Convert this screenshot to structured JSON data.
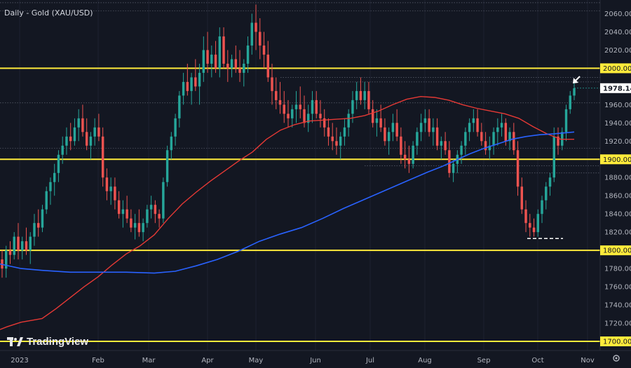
{
  "chart_title": "Daily - Gold (XAU/USD)",
  "brand": "TradingView",
  "chart_data": {
    "type": "candlestick",
    "title": "Daily - Gold (XAU/USD)",
    "ylim": [
      1690,
      2075
    ],
    "y_ticks": [
      1720,
      1740,
      1760,
      1780,
      1820,
      1840,
      1860,
      1880,
      1920,
      1940,
      1960,
      2020,
      2040,
      2060
    ],
    "y_tick_labels": [
      "1720.000",
      "1740.000",
      "1760.000",
      "1780.000",
      "1820.000",
      "1840.000",
      "1860.000",
      "1880.000",
      "1920.000",
      "1940.000",
      "1960.000",
      "2020.000",
      "2040.000",
      "2060.000"
    ],
    "x_ticks": [
      "2023",
      "Feb",
      "Mar",
      "Apr",
      "May",
      "Jun",
      "Jul",
      "Aug",
      "Sep",
      "Oct",
      "Nov"
    ],
    "levels": [
      {
        "value": 2000,
        "label": "2000.000"
      },
      {
        "value": 1900,
        "label": "1900.000"
      },
      {
        "value": 1800,
        "label": "1800.000"
      },
      {
        "value": 1700,
        "label": "1700.000"
      }
    ],
    "current_price": {
      "value": 1978.145,
      "label": "1978.145"
    },
    "colors": {
      "up": "#26a69a",
      "down": "#ef5350",
      "ma_red": "#e53935",
      "ma_blue": "#2962ff",
      "level": "#ffeb3b"
    },
    "ohlc": [
      [
        1790,
        1800,
        1770,
        1780
      ],
      [
        1780,
        1805,
        1770,
        1800
      ],
      [
        1800,
        1810,
        1785,
        1795
      ],
      [
        1795,
        1820,
        1790,
        1815
      ],
      [
        1815,
        1830,
        1790,
        1800
      ],
      [
        1800,
        1815,
        1790,
        1810
      ],
      [
        1810,
        1825,
        1795,
        1800
      ],
      [
        1800,
        1820,
        1785,
        1815
      ],
      [
        1815,
        1840,
        1805,
        1830
      ],
      [
        1830,
        1845,
        1815,
        1825
      ],
      [
        1825,
        1850,
        1820,
        1845
      ],
      [
        1845,
        1870,
        1840,
        1865
      ],
      [
        1865,
        1880,
        1850,
        1875
      ],
      [
        1875,
        1895,
        1860,
        1885
      ],
      [
        1885,
        1910,
        1875,
        1905
      ],
      [
        1905,
        1925,
        1895,
        1915
      ],
      [
        1915,
        1935,
        1905,
        1925
      ],
      [
        1925,
        1940,
        1910,
        1920
      ],
      [
        1920,
        1945,
        1915,
        1935
      ],
      [
        1935,
        1955,
        1920,
        1945
      ],
      [
        1945,
        1960,
        1925,
        1930
      ],
      [
        1930,
        1945,
        1910,
        1915
      ],
      [
        1915,
        1930,
        1900,
        1925
      ],
      [
        1925,
        1945,
        1915,
        1935
      ],
      [
        1935,
        1950,
        1920,
        1925
      ],
      [
        1925,
        1935,
        1870,
        1880
      ],
      [
        1880,
        1890,
        1855,
        1865
      ],
      [
        1865,
        1880,
        1850,
        1870
      ],
      [
        1870,
        1880,
        1845,
        1855
      ],
      [
        1855,
        1865,
        1835,
        1840
      ],
      [
        1840,
        1855,
        1825,
        1845
      ],
      [
        1845,
        1860,
        1830,
        1835
      ],
      [
        1835,
        1845,
        1820,
        1825
      ],
      [
        1825,
        1840,
        1812,
        1830
      ],
      [
        1830,
        1845,
        1815,
        1820
      ],
      [
        1820,
        1835,
        1810,
        1830
      ],
      [
        1830,
        1850,
        1825,
        1845
      ],
      [
        1845,
        1860,
        1835,
        1850
      ],
      [
        1850,
        1855,
        1830,
        1840
      ],
      [
        1840,
        1845,
        1825,
        1835
      ],
      [
        1835,
        1880,
        1830,
        1875
      ],
      [
        1875,
        1915,
        1870,
        1910
      ],
      [
        1910,
        1930,
        1900,
        1925
      ],
      [
        1925,
        1950,
        1915,
        1945
      ],
      [
        1945,
        1975,
        1935,
        1970
      ],
      [
        1970,
        1995,
        1960,
        1985
      ],
      [
        1985,
        2005,
        1970,
        1975
      ],
      [
        1975,
        1995,
        1960,
        1990
      ],
      [
        1990,
        2010,
        1975,
        1980
      ],
      [
        1980,
        2005,
        1960,
        1995
      ],
      [
        1995,
        2035,
        1985,
        2020
      ],
      [
        2020,
        2040,
        1995,
        2005
      ],
      [
        2005,
        2025,
        1990,
        2015
      ],
      [
        2015,
        2030,
        1995,
        2000
      ],
      [
        2000,
        2045,
        1990,
        2035
      ],
      [
        2035,
        2045,
        2000,
        2005
      ],
      [
        2005,
        2020,
        1985,
        2000
      ],
      [
        2000,
        2015,
        1990,
        2010
      ],
      [
        2010,
        2025,
        1995,
        2000
      ],
      [
        2000,
        2020,
        1985,
        1995
      ],
      [
        1995,
        2010,
        1980,
        2005
      ],
      [
        2005,
        2035,
        1995,
        2025
      ],
      [
        2025,
        2060,
        2015,
        2050
      ],
      [
        2050,
        2070,
        2020,
        2040
      ],
      [
        2040,
        2055,
        2010,
        2025
      ],
      [
        2025,
        2040,
        2000,
        2015
      ],
      [
        2015,
        2030,
        1985,
        1990
      ],
      [
        1990,
        2005,
        1960,
        1975
      ],
      [
        1975,
        1990,
        1955,
        1965
      ],
      [
        1965,
        1985,
        1950,
        1960
      ],
      [
        1960,
        1975,
        1940,
        1950
      ],
      [
        1950,
        1965,
        1935,
        1945
      ],
      [
        1945,
        1960,
        1935,
        1955
      ],
      [
        1955,
        1975,
        1940,
        1960
      ],
      [
        1960,
        1980,
        1945,
        1955
      ],
      [
        1955,
        1970,
        1935,
        1940
      ],
      [
        1940,
        1960,
        1930,
        1950
      ],
      [
        1950,
        1975,
        1940,
        1965
      ],
      [
        1965,
        1975,
        1945,
        1950
      ],
      [
        1950,
        1965,
        1935,
        1945
      ],
      [
        1945,
        1955,
        1925,
        1935
      ],
      [
        1935,
        1945,
        1915,
        1925
      ],
      [
        1925,
        1940,
        1910,
        1920
      ],
      [
        1920,
        1935,
        1905,
        1915
      ],
      [
        1915,
        1930,
        1900,
        1925
      ],
      [
        1925,
        1945,
        1915,
        1935
      ],
      [
        1935,
        1955,
        1925,
        1950
      ],
      [
        1950,
        1975,
        1940,
        1965
      ],
      [
        1965,
        1985,
        1955,
        1975
      ],
      [
        1975,
        1990,
        1960,
        1965
      ],
      [
        1965,
        1985,
        1955,
        1975
      ],
      [
        1975,
        1985,
        1950,
        1955
      ],
      [
        1955,
        1965,
        1935,
        1940
      ],
      [
        1940,
        1955,
        1925,
        1945
      ],
      [
        1945,
        1960,
        1930,
        1935
      ],
      [
        1935,
        1945,
        1915,
        1920
      ],
      [
        1920,
        1935,
        1905,
        1930
      ],
      [
        1930,
        1950,
        1920,
        1940
      ],
      [
        1940,
        1955,
        1920,
        1925
      ],
      [
        1925,
        1935,
        1895,
        1905
      ],
      [
        1905,
        1920,
        1890,
        1900
      ],
      [
        1900,
        1915,
        1885,
        1895
      ],
      [
        1895,
        1920,
        1890,
        1915
      ],
      [
        1915,
        1935,
        1905,
        1930
      ],
      [
        1930,
        1950,
        1920,
        1940
      ],
      [
        1940,
        1955,
        1930,
        1945
      ],
      [
        1945,
        1955,
        1925,
        1930
      ],
      [
        1930,
        1945,
        1915,
        1935
      ],
      [
        1935,
        1945,
        1910,
        1915
      ],
      [
        1915,
        1925,
        1900,
        1920
      ],
      [
        1920,
        1930,
        1905,
        1910
      ],
      [
        1910,
        1920,
        1880,
        1885
      ],
      [
        1885,
        1900,
        1875,
        1895
      ],
      [
        1895,
        1910,
        1885,
        1905
      ],
      [
        1905,
        1920,
        1895,
        1915
      ],
      [
        1915,
        1935,
        1905,
        1930
      ],
      [
        1930,
        1945,
        1920,
        1940
      ],
      [
        1940,
        1955,
        1930,
        1945
      ],
      [
        1945,
        1955,
        1925,
        1930
      ],
      [
        1930,
        1940,
        1915,
        1920
      ],
      [
        1920,
        1930,
        1905,
        1910
      ],
      [
        1910,
        1925,
        1900,
        1915
      ],
      [
        1915,
        1935,
        1905,
        1930
      ],
      [
        1930,
        1945,
        1915,
        1935
      ],
      [
        1935,
        1950,
        1925,
        1940
      ],
      [
        1940,
        1945,
        1915,
        1920
      ],
      [
        1920,
        1935,
        1910,
        1930
      ],
      [
        1930,
        1940,
        1905,
        1910
      ],
      [
        1910,
        1920,
        1860,
        1870
      ],
      [
        1870,
        1880,
        1840,
        1845
      ],
      [
        1845,
        1855,
        1820,
        1830
      ],
      [
        1830,
        1840,
        1815,
        1825
      ],
      [
        1825,
        1835,
        1815,
        1820
      ],
      [
        1820,
        1845,
        1815,
        1840
      ],
      [
        1840,
        1860,
        1830,
        1855
      ],
      [
        1855,
        1875,
        1845,
        1870
      ],
      [
        1870,
        1885,
        1860,
        1880
      ],
      [
        1880,
        1935,
        1875,
        1925
      ],
      [
        1925,
        1935,
        1905,
        1915
      ],
      [
        1915,
        1935,
        1910,
        1930
      ],
      [
        1930,
        1960,
        1920,
        1955
      ],
      [
        1955,
        1975,
        1950,
        1970
      ],
      [
        1970,
        1985,
        1965,
        1978
      ]
    ]
  }
}
